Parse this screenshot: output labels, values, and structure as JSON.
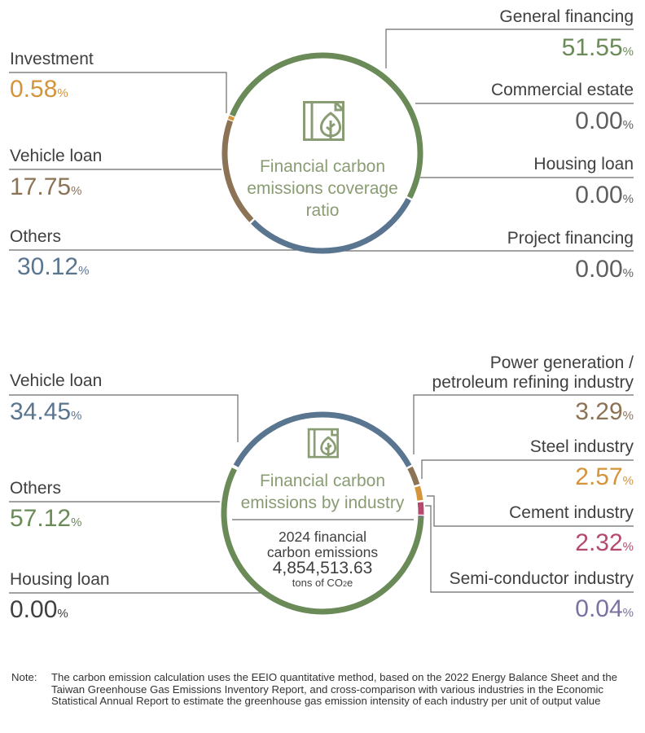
{
  "colors": {
    "green": "#6a8a58",
    "brown": "#8c7356",
    "blue": "#5a7590",
    "orange": "#d4943a",
    "pink": "#b5496e",
    "purple": "#7c72a0",
    "gray": "#5f5f5f",
    "icon": "#8a9c73",
    "line": "#6b6b6b"
  },
  "chart_data": [
    {
      "type": "pie",
      "title": "Financial carbon emissions coverage ratio",
      "unit": "%",
      "categories": [
        "General financing",
        "Commercial estate",
        "Housing loan",
        "Project financing",
        "Others",
        "Vehicle loan",
        "Investment"
      ],
      "values": [
        51.55,
        0.0,
        0.0,
        0.0,
        30.12,
        17.75,
        0.58
      ],
      "series_colors": [
        "#6a8a58",
        "#5f5f5f",
        "#5f5f5f",
        "#5f5f5f",
        "#5a7590",
        "#8c7356",
        "#d4943a"
      ]
    },
    {
      "type": "pie",
      "title": "Financial carbon emissions by industry",
      "unit": "%",
      "categories": [
        "Vehicle loan",
        "Power generation / petroleum refining industry",
        "Steel industry",
        "Cement industry",
        "Semi-conductor industry",
        "Others",
        "Housing loan"
      ],
      "values": [
        34.45,
        3.29,
        2.57,
        2.32,
        0.04,
        57.12,
        0.0
      ],
      "series_colors": [
        "#5a7590",
        "#8c7356",
        "#d4943a",
        "#b5496e",
        "#7c72a0",
        "#6a8a58",
        "#404040"
      ],
      "total_label_line1": "2024 financial",
      "total_label_line2": "carbon emissions",
      "total_value": "4,854,513.63",
      "total_unit_pre": "tons of CO",
      "total_unit_sub": "2",
      "total_unit_post": "e"
    }
  ],
  "top": {
    "title_line1": "Financial carbon",
    "title_line2": "emissions coverage",
    "title_line3": "ratio",
    "items": {
      "general_financing": {
        "label": "General financing",
        "value": "51.55",
        "pct": "%"
      },
      "commercial_estate": {
        "label": "Commercial estate",
        "value": "0.00",
        "pct": "%"
      },
      "housing_loan": {
        "label": "Housing loan",
        "value": "0.00",
        "pct": "%"
      },
      "project_financing": {
        "label": "Project financing",
        "value": "0.00",
        "pct": "%"
      },
      "investment": {
        "label": "Investment",
        "value": "0.58",
        "pct": "%"
      },
      "vehicle_loan": {
        "label": "Vehicle loan",
        "value": "17.75",
        "pct": "%"
      },
      "others": {
        "label": "Others",
        "value": "30.12",
        "pct": "%"
      }
    }
  },
  "bottom": {
    "title_line1": "Financial carbon",
    "title_line2": "emissions by industry",
    "items": {
      "vehicle_loan": {
        "label": "Vehicle loan",
        "value": "34.45",
        "pct": "%"
      },
      "others": {
        "label": "Others",
        "value": "57.12",
        "pct": "%"
      },
      "housing_loan": {
        "label": "Housing loan",
        "value": "0.00",
        "pct": "%"
      },
      "power": {
        "label_line1": "Power generation /",
        "label_line2": "petroleum refining industry",
        "value": "3.29",
        "pct": "%"
      },
      "steel": {
        "label": "Steel industry",
        "value": "2.57",
        "pct": "%"
      },
      "cement": {
        "label": "Cement industry",
        "value": "2.32",
        "pct": "%"
      },
      "semi": {
        "label": "Semi-conductor industry",
        "value": "0.04",
        "pct": "%"
      }
    }
  },
  "note": {
    "label": "Note:",
    "text": "The carbon emission calculation uses the EEIO quantitative method, based on the 2022 Energy Balance Sheet and the Taiwan Greenhouse Gas Emissions Inventory Report, and cross-comparison with various industries in the Economic Statistical Annual Report to estimate the greenhouse gas emission intensity of each industry per unit of output value"
  }
}
